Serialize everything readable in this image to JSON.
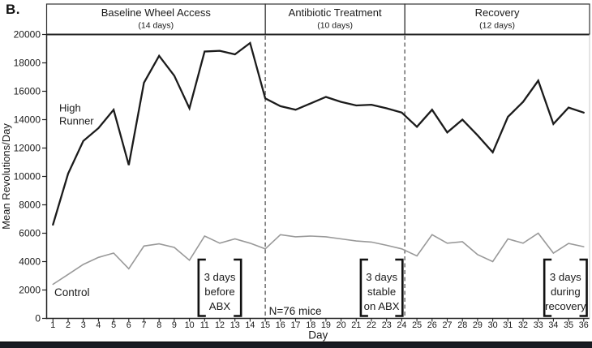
{
  "panel_label": "B.",
  "header": {
    "phases": [
      {
        "title": "Baseline Wheel Access",
        "subtitle": "(14 days)"
      },
      {
        "title": "Antibiotic Treatment",
        "subtitle": "(10 days)"
      },
      {
        "title": "Recovery",
        "subtitle": "(12 days)"
      }
    ]
  },
  "chart_data": {
    "type": "line",
    "title": "",
    "xlabel": "Day",
    "ylabel": "Mean Revolutions/Day",
    "ylim": [
      0,
      20000
    ],
    "ytick_step": 2000,
    "grid": false,
    "legend_position": "inline-left",
    "x": [
      1,
      2,
      3,
      4,
      5,
      6,
      7,
      8,
      9,
      10,
      11,
      12,
      13,
      14,
      15,
      16,
      17,
      18,
      19,
      20,
      21,
      22,
      23,
      24,
      25,
      26,
      27,
      28,
      29,
      30,
      31,
      32,
      33,
      34,
      35,
      36
    ],
    "series": [
      {
        "name": "High Runner",
        "label_lines": [
          "High",
          "Runner"
        ],
        "color": "#1b1b1b",
        "stroke_width": 2.3,
        "values": [
          6600,
          10200,
          12500,
          13400,
          14700,
          10800,
          16600,
          18500,
          17100,
          14800,
          18800,
          18850,
          18600,
          19400,
          15500,
          14950,
          14700,
          15150,
          15600,
          15250,
          15000,
          15050,
          14800,
          14500,
          13500,
          14700,
          13100,
          14000,
          12900,
          11700,
          14200,
          15250,
          16750,
          13700,
          14850,
          14500
        ]
      },
      {
        "name": "Control",
        "label_lines": [
          "Control"
        ],
        "color": "#999999",
        "stroke_width": 1.6,
        "values": [
          2400,
          3100,
          3800,
          4300,
          4600,
          3500,
          5100,
          5250,
          5000,
          4100,
          5800,
          5300,
          5600,
          5300,
          4900,
          5900,
          5750,
          5800,
          5750,
          5600,
          5450,
          5380,
          5150,
          4900,
          4400,
          5900,
          5300,
          5400,
          4500,
          4000,
          5600,
          5300,
          6000,
          4600,
          5280,
          5050
        ]
      }
    ],
    "vlines_day": [
      15,
      24.2
    ],
    "annotations": {
      "sample_size": "N=76 mice",
      "brackets": [
        {
          "lines": [
            "3 days",
            "before",
            "ABX"
          ],
          "from_day": 10.6,
          "to_day": 13.4
        },
        {
          "lines": [
            "3 days",
            "stable",
            "on ABX"
          ],
          "from_day": 21.3,
          "to_day": 24.05
        },
        {
          "lines": [
            "3 days",
            "during",
            "recovery"
          ],
          "from_day": 33.4,
          "to_day": 36.2
        }
      ]
    }
  },
  "colors": {
    "axis": "#222222",
    "header_border": "#333333",
    "dashed_line": "#555555",
    "bracket": "#111111",
    "right_border": "#c9c9c9",
    "bottom_bar": "#181b22"
  }
}
